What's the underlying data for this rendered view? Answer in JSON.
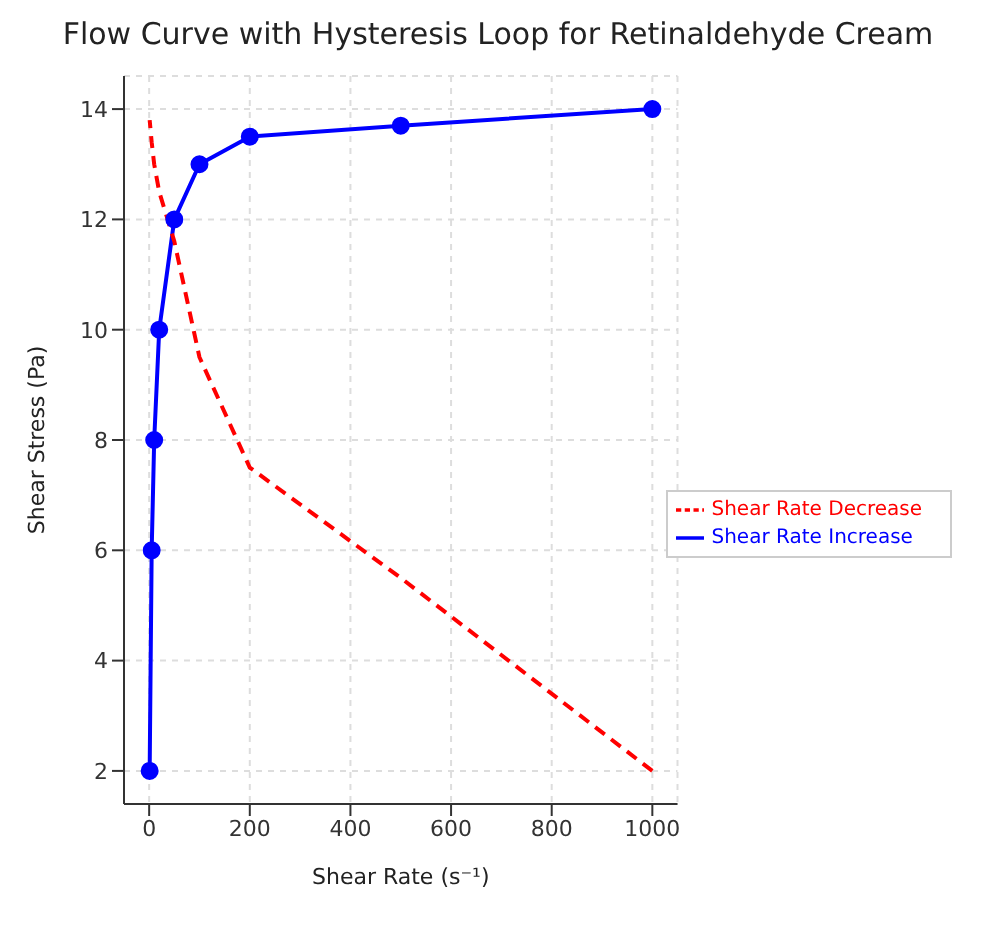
{
  "chart_data": {
    "type": "line",
    "title": "Flow Curve with Hysteresis Loop for Retinaldehyde Cream",
    "xlabel": "Shear Rate (s⁻¹)",
    "ylabel": "Shear Stress (Pa)",
    "xlim": [
      -50,
      1050
    ],
    "xticks": [
      0,
      200,
      400,
      600,
      800,
      1000
    ],
    "ylim": [
      1.4,
      14.6
    ],
    "yticks": [
      2,
      4,
      6,
      8,
      10,
      12,
      14
    ],
    "grid": true,
    "legend": "right",
    "series": [
      {
        "name": "Shear Rate Increase",
        "color": "#0000ff",
        "marker": "circle",
        "line_style": "solid",
        "x": [
          1,
          5,
          10,
          20,
          50,
          100,
          200,
          500,
          1000
        ],
        "values": [
          2,
          6,
          8,
          10,
          12,
          13,
          13.5,
          13.7,
          14
        ]
      },
      {
        "name": "Shear Rate Decrease",
        "color": "#ff0000",
        "marker": "none",
        "line_style": "dashed",
        "x": [
          1000,
          500,
          200,
          100,
          50,
          20,
          10,
          5,
          1
        ],
        "values": [
          2,
          5.5,
          7.5,
          9.5,
          11.6,
          12.5,
          13,
          13.4,
          13.8
        ]
      }
    ]
  }
}
